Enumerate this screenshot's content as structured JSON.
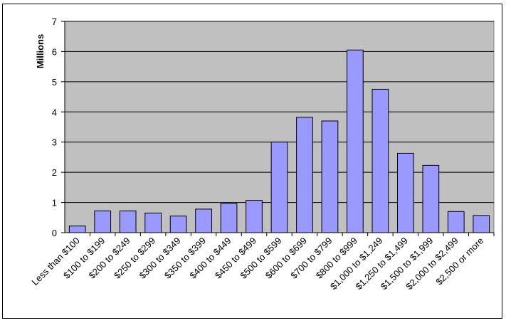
{
  "chart_data": {
    "type": "bar",
    "title": "",
    "xlabel": "",
    "ylabel": "Millions",
    "ylim": [
      0,
      7
    ],
    "yticks": [
      0,
      1,
      2,
      3,
      4,
      5,
      6,
      7
    ],
    "grid": true,
    "legend": "none",
    "categories": [
      "Less than $100",
      "$100 to $199",
      "$200 to $249",
      "$250 to $299",
      "$300 to $349",
      "$350 to $399",
      "$400 to $449",
      "$450 to $499",
      "$500 to $599",
      "$600 to $699",
      "$700 to $799",
      "$800 to $999",
      "$1,000 to $1,249",
      "$1,250 to $1,499",
      "$1,500 to $1,999",
      "$2,000 to $2,499",
      "$2,500 or more"
    ],
    "values": [
      0.22,
      0.72,
      0.72,
      0.65,
      0.55,
      0.78,
      0.97,
      1.07,
      3.0,
      3.82,
      3.7,
      6.05,
      4.75,
      2.63,
      2.23,
      0.7,
      0.57
    ],
    "colors": {
      "bar_fill": "#9999ff",
      "bar_stroke": "#000000",
      "plot_background": "#c0c0c0",
      "gridline": "#000000"
    }
  }
}
